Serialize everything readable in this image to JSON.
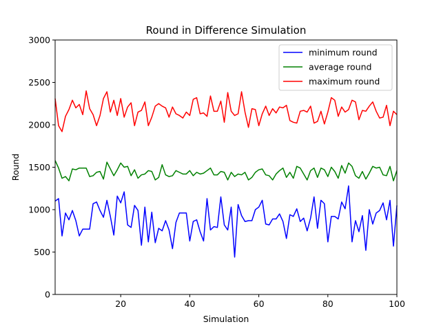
{
  "chart_data": {
    "type": "line",
    "title": "Round in Difference Simulation",
    "xlabel": "Simulation",
    "ylabel": "Round",
    "xlim": [
      1,
      100
    ],
    "ylim": [
      0,
      3000
    ],
    "xticks": [
      20,
      40,
      60,
      80,
      100
    ],
    "yticks": [
      0,
      500,
      1000,
      1500,
      2000,
      2500,
      3000
    ],
    "grid": false,
    "legend_position": "top-right",
    "x": [
      1,
      2,
      3,
      4,
      5,
      6,
      7,
      8,
      9,
      10,
      11,
      12,
      13,
      14,
      15,
      16,
      17,
      18,
      19,
      20,
      21,
      22,
      23,
      24,
      25,
      26,
      27,
      28,
      29,
      30,
      31,
      32,
      33,
      34,
      35,
      36,
      37,
      38,
      39,
      40,
      41,
      42,
      43,
      44,
      45,
      46,
      47,
      48,
      49,
      50,
      51,
      52,
      53,
      54,
      55,
      56,
      57,
      58,
      59,
      60,
      61,
      62,
      63,
      64,
      65,
      66,
      67,
      68,
      69,
      70,
      71,
      72,
      73,
      74,
      75,
      76,
      77,
      78,
      79,
      80,
      81,
      82,
      83,
      84,
      85,
      86,
      87,
      88,
      89,
      90,
      91,
      92,
      93,
      94,
      95,
      96,
      97,
      98,
      99,
      100
    ],
    "series": [
      {
        "name": "minimum round",
        "color": "#0000ff",
        "values": [
          1100,
          1130,
          690,
          960,
          880,
          990,
          870,
          690,
          770,
          770,
          770,
          1070,
          1090,
          990,
          910,
          1110,
          920,
          700,
          1160,
          1080,
          1210,
          820,
          790,
          1050,
          990,
          580,
          1030,
          620,
          970,
          610,
          780,
          750,
          870,
          760,
          540,
          850,
          960,
          960,
          960,
          630,
          860,
          880,
          740,
          630,
          1130,
          760,
          800,
          790,
          1150,
          820,
          760,
          1030,
          440,
          1060,
          930,
          860,
          870,
          870,
          1000,
          1030,
          1110,
          830,
          820,
          890,
          890,
          950,
          860,
          660,
          940,
          920,
          1010,
          860,
          900,
          750,
          900,
          1150,
          780,
          1110,
          1070,
          620,
          920,
          920,
          890,
          1090,
          1010,
          1280,
          620,
          870,
          740,
          930,
          520,
          1000,
          830,
          960,
          990,
          1080,
          880,
          1110,
          570,
          1050
        ]
      },
      {
        "name": "average round",
        "color": "#008000",
        "values": [
          1580,
          1490,
          1370,
          1390,
          1340,
          1480,
          1470,
          1490,
          1490,
          1490,
          1390,
          1400,
          1440,
          1450,
          1360,
          1560,
          1480,
          1400,
          1470,
          1550,
          1500,
          1510,
          1400,
          1470,
          1370,
          1410,
          1420,
          1460,
          1450,
          1350,
          1380,
          1530,
          1410,
          1390,
          1400,
          1460,
          1440,
          1420,
          1420,
          1460,
          1400,
          1440,
          1420,
          1430,
          1460,
          1490,
          1410,
          1410,
          1450,
          1440,
          1350,
          1440,
          1390,
          1420,
          1410,
          1440,
          1350,
          1380,
          1440,
          1470,
          1480,
          1410,
          1400,
          1350,
          1420,
          1460,
          1490,
          1380,
          1440,
          1370,
          1510,
          1490,
          1420,
          1350,
          1460,
          1490,
          1380,
          1490,
          1470,
          1390,
          1500,
          1450,
          1370,
          1520,
          1430,
          1550,
          1510,
          1400,
          1370,
          1450,
          1360,
          1430,
          1510,
          1490,
          1500,
          1410,
          1400,
          1510,
          1340,
          1460
        ]
      },
      {
        "name": "maximum round",
        "color": "#ff0000",
        "values": [
          2310,
          1990,
          1920,
          2100,
          2180,
          2290,
          2200,
          2240,
          2120,
          2400,
          2190,
          2120,
          1990,
          2110,
          2310,
          2390,
          2150,
          2290,
          2110,
          2310,
          2090,
          2210,
          2260,
          1990,
          2150,
          2170,
          2270,
          1990,
          2090,
          2220,
          2250,
          2220,
          2200,
          2090,
          2210,
          2130,
          2110,
          2080,
          2150,
          2110,
          2300,
          2320,
          2130,
          2140,
          2100,
          2340,
          2160,
          2160,
          2280,
          2030,
          2380,
          2160,
          2110,
          2130,
          2390,
          2150,
          1970,
          2190,
          2180,
          1990,
          2130,
          2220,
          2110,
          2190,
          2140,
          2210,
          2200,
          2230,
          2050,
          2030,
          2020,
          2160,
          2170,
          2150,
          2220,
          2020,
          2040,
          2160,
          2010,
          2150,
          2320,
          2290,
          2100,
          2210,
          2150,
          2180,
          2290,
          2270,
          2060,
          2170,
          2160,
          2220,
          2270,
          2160,
          2080,
          2090,
          2230,
          1990,
          2160,
          2120
        ]
      }
    ]
  }
}
